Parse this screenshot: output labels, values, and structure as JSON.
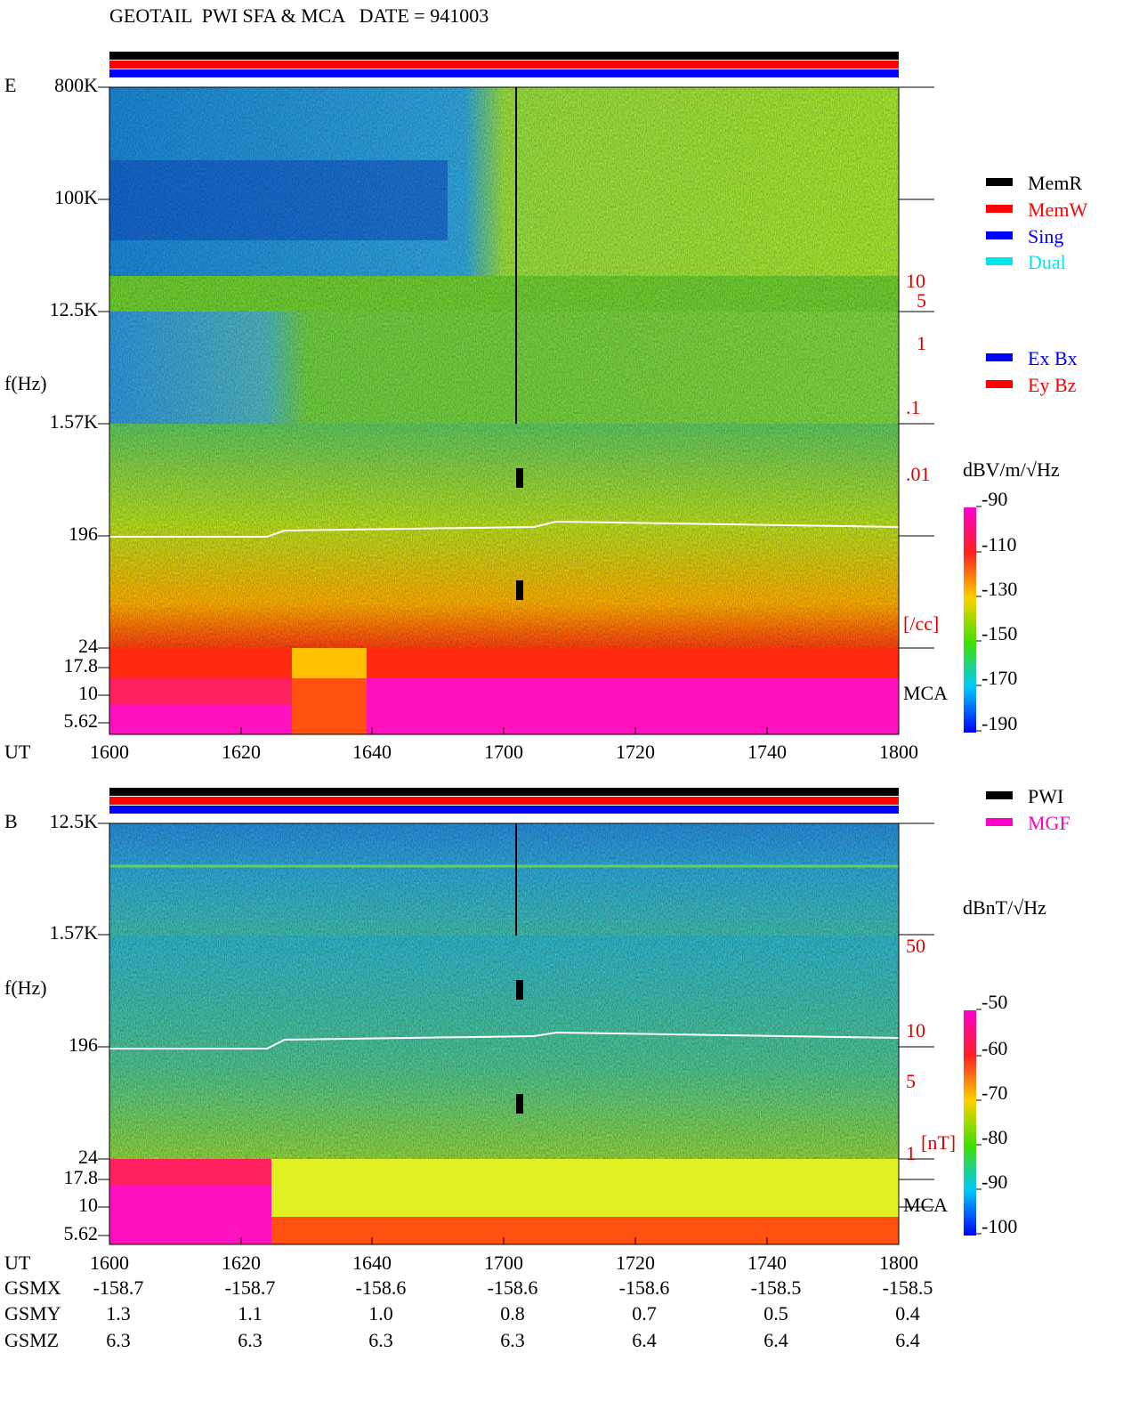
{
  "header": {
    "title": "GEOTAIL  PWI SFA & MCA   DATE = 941003"
  },
  "panels": [
    {
      "label": "E",
      "freq_labels": [
        "800K",
        "100K",
        "12.5K",
        "1.57K",
        "196",
        "24",
        "17.8",
        "10",
        "5.62"
      ],
      "axis_label": "f(Hz)",
      "time_label": "UT",
      "time_ticks": [
        "1600",
        "1620",
        "1640",
        "1700",
        "1720",
        "1740",
        "1800"
      ],
      "mca_label": "MCA",
      "scale_labels": [
        "10",
        "5",
        "1",
        ".1",
        ".01",
        "[/cc]"
      ],
      "colorbar": {
        "title": "dBV/m/√Hz",
        "ticks": [
          -90,
          -110,
          -130,
          -150,
          -170,
          -190
        ]
      },
      "legend": [
        {
          "name": "MemR",
          "color": "#000000"
        },
        {
          "name": "MemW",
          "color": "#ff0000"
        },
        {
          "name": "Sing",
          "color": "#0000ff"
        },
        {
          "name": "Dual",
          "color": "#00e5ee"
        },
        {
          "name": "Ex Bx",
          "color": "#0000ff"
        },
        {
          "name": "Ey Bz",
          "color": "#ff0000"
        }
      ]
    },
    {
      "label": "B",
      "freq_labels": [
        "12.5K",
        "1.57K",
        "196",
        "24",
        "17.8",
        "10",
        "5.62"
      ],
      "axis_label": "f(Hz)",
      "time_label": "UT",
      "time_ticks": [
        "1600",
        "1620",
        "1640",
        "1700",
        "1720",
        "1740",
        "1800"
      ],
      "mca_label": "MCA",
      "scale_labels": [
        "50",
        "10",
        "5",
        "1",
        "[nT]"
      ],
      "colorbar": {
        "title": "dBnT/√Hz",
        "ticks": [
          -50,
          -60,
          -70,
          -80,
          -90,
          -100
        ]
      },
      "legend": [
        {
          "name": "PWI",
          "color": "#000000"
        },
        {
          "name": "MGF",
          "color": "#ff00cc"
        }
      ]
    }
  ],
  "orbit": {
    "rows": [
      {
        "name": "GSMX",
        "values": [
          "-158.7",
          "-158.7",
          "-158.6",
          "-158.6",
          "-158.6",
          "-158.5",
          "-158.5"
        ]
      },
      {
        "name": "GSMY",
        "values": [
          "1.3",
          "1.1",
          "1.0",
          "0.8",
          "0.7",
          "0.5",
          "0.4"
        ]
      },
      {
        "name": "GSMZ",
        "values": [
          "6.3",
          "6.3",
          "6.3",
          "6.3",
          "6.4",
          "6.4",
          "6.4"
        ]
      }
    ]
  }
}
